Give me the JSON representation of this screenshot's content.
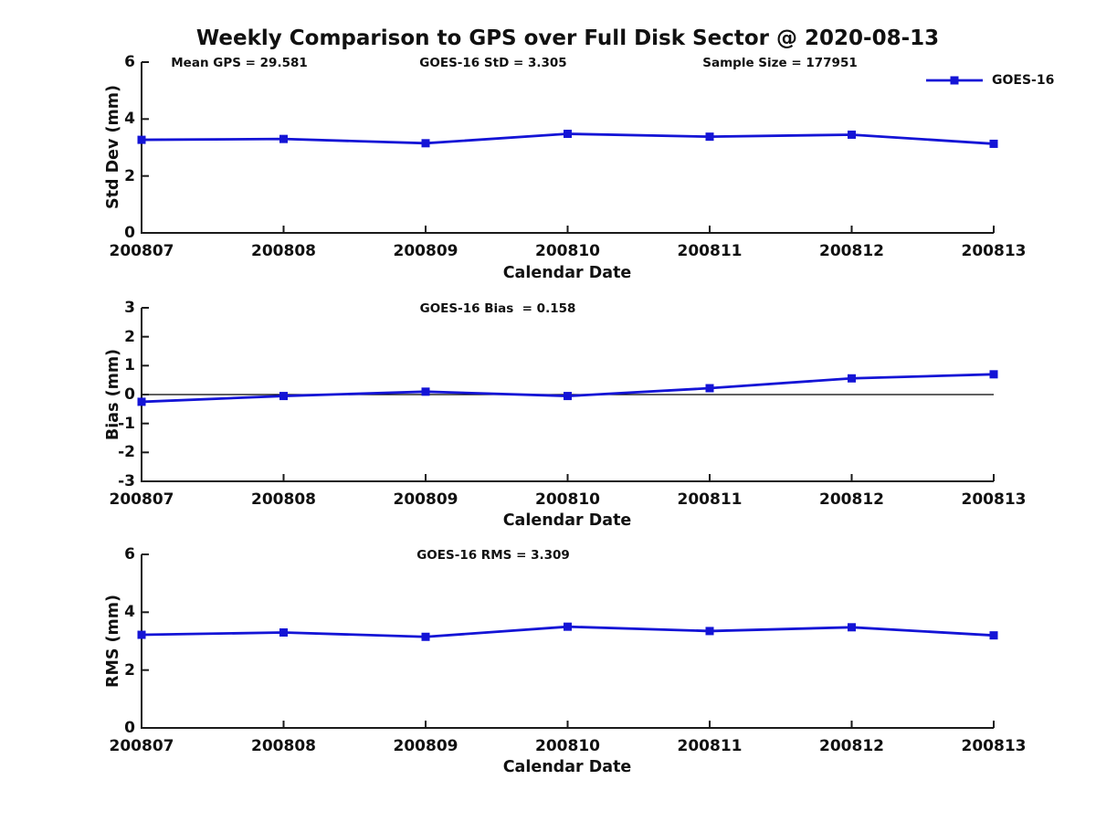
{
  "figure": {
    "title": "Weekly Comparison to GPS over Full Disk Sector @ 2020-08-13"
  },
  "legend": {
    "label": "GOES-16",
    "position": "top-right"
  },
  "colors": {
    "series": "#1414d6",
    "axis": "#1a1a1a",
    "text": "#111111",
    "zero_line": "#000000",
    "background": "#ffffff"
  },
  "chart_data": [
    {
      "type": "line",
      "annotations": [
        "Mean GPS = 29.581",
        "GOES-16 StD = 3.305",
        "Sample Size = 177951"
      ],
      "xlabel": "Calendar Date",
      "ylabel": "Std Dev (mm)",
      "categories": [
        "200807",
        "200808",
        "200809",
        "200810",
        "200811",
        "200812",
        "200813"
      ],
      "yticks": [
        0,
        2,
        4,
        6
      ],
      "ylim": [
        0,
        6
      ],
      "grid": false,
      "legend_position": "top-right",
      "series": [
        {
          "name": "GOES-16",
          "marker": "square",
          "values": [
            3.27,
            3.3,
            3.15,
            3.48,
            3.38,
            3.45,
            3.13
          ]
        }
      ]
    },
    {
      "type": "line",
      "annotations": [
        "GOES-16 Bias  = 0.158"
      ],
      "xlabel": "Calendar Date",
      "ylabel": "Bias (mm)",
      "categories": [
        "200807",
        "200808",
        "200809",
        "200810",
        "200811",
        "200812",
        "200813"
      ],
      "yticks": [
        -3,
        -2,
        -1,
        0,
        1,
        2,
        3
      ],
      "ylim": [
        -3,
        3
      ],
      "grid": false,
      "zero_line": true,
      "series": [
        {
          "name": "GOES-16",
          "marker": "square",
          "values": [
            -0.25,
            -0.05,
            0.1,
            -0.05,
            0.22,
            0.56,
            0.7
          ]
        }
      ]
    },
    {
      "type": "line",
      "annotations": [
        "GOES-16 RMS = 3.309"
      ],
      "xlabel": "Calendar Date",
      "ylabel": "RMS (mm)",
      "categories": [
        "200807",
        "200808",
        "200809",
        "200810",
        "200811",
        "200812",
        "200813"
      ],
      "yticks": [
        0,
        2,
        4,
        6
      ],
      "ylim": [
        0,
        6
      ],
      "grid": false,
      "series": [
        {
          "name": "GOES-16",
          "marker": "square",
          "values": [
            3.22,
            3.3,
            3.15,
            3.5,
            3.35,
            3.48,
            3.2
          ]
        }
      ]
    }
  ]
}
